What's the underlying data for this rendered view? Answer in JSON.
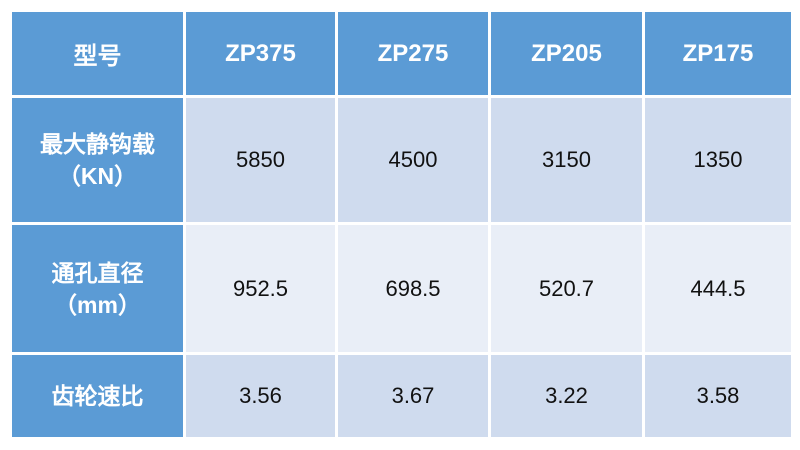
{
  "table": {
    "header": [
      "型号",
      "ZP375",
      "ZP275",
      "ZP205",
      "ZP175"
    ],
    "rows": [
      {
        "label": [
          "最大静钩载",
          "（KN）"
        ],
        "cells": [
          "5850",
          "4500",
          "3150",
          "1350"
        ]
      },
      {
        "label": [
          "通孔直径",
          "（mm）"
        ],
        "cells": [
          "952.5",
          "698.5",
          "520.7",
          "444.5"
        ]
      },
      {
        "label": [
          "齿轮速比"
        ],
        "cells": [
          "3.56",
          "3.67",
          "3.22",
          "3.58"
        ]
      }
    ]
  }
}
